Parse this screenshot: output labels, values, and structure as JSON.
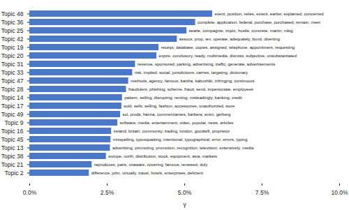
{
  "chart_data": {
    "type": "bar",
    "orientation": "horizontal",
    "color": "#4a78c8",
    "grid": false,
    "x_label": "γ",
    "categories": [
      "Topic 48",
      "Topic 36",
      "Topic 25",
      "Topic 42",
      "Topic 19",
      "Topic 20",
      "Topic 31",
      "Topic 33",
      "Topic 47",
      "Topic 28",
      "Topic 14",
      "Topic 17",
      "Topic 49",
      "Topic 9",
      "Topic 16",
      "Topic 45",
      "Topic 13",
      "Topic 38",
      "Topic 21",
      "Topic 2"
    ],
    "values": [
      5.9,
      5.35,
      5.07,
      4.76,
      4.17,
      4.1,
      3.41,
      3.32,
      3.19,
      3.12,
      2.99,
      2.97,
      2.93,
      2.84,
      2.64,
      2.62,
      2.6,
      2.47,
      2.01,
      1.92
    ],
    "annotations": [
      "event, position, relies, extent, earlier, explained, concerned",
      "complete, application, federal, purchase, purchased, remain, meet",
      "searle, compagnie, tropic, hustle, concrete, martin, mktg",
      "assocs, prop, tex, operate, adequately, bond, diverting",
      "receipt, database, copies, assigned, telephone, appointment, requesting",
      "expire, conclusory, ready, multimedia, dismiss, subjective, unsubstantiated",
      "revenue, sponsored, parking, advertising, traffic, generate, advertisements",
      "risk, implied, social, jurisdictions, carries, targeting, dictionary",
      "methods, agency, famous, kaisha, kabushiki, infringing, continuous",
      "fraudulent, phishing, scheme, fraud, send, impersonate, employees",
      "pattern, selling, disrupting, renting, misleadingly, banking, credit",
      "sold, sells, selling, fashion, accessories, unauthorized, store",
      "sol, prods, hanna, commerciantes, barbera, entm, gerberg",
      "software, media, entertainment, video, popular, news, articles",
      "ireland, britain, community, trading, london, goodwill, proprietor",
      "misspelling, typosquatting, intentional, typographical, error, errors, typing",
      "advertising, promoting, promotion, recognition, television, extensively, media",
      "europe, north, distribution, stock, equipment, asia, markets",
      "reproduces, paris, unaware, covering, famous, renewed, duly",
      "difference, john, virtually, travel, hotels, enterprises, deficient"
    ],
    "xlim": [
      0,
      10
    ],
    "xticks": [
      {
        "value": 0,
        "label": "0.0%"
      },
      {
        "value": 2.5,
        "label": "2.5%"
      },
      {
        "value": 5,
        "label": "5.0%"
      },
      {
        "value": 7.5,
        "label": "7.5%"
      },
      {
        "value": 10,
        "label": "10.0%"
      }
    ]
  }
}
